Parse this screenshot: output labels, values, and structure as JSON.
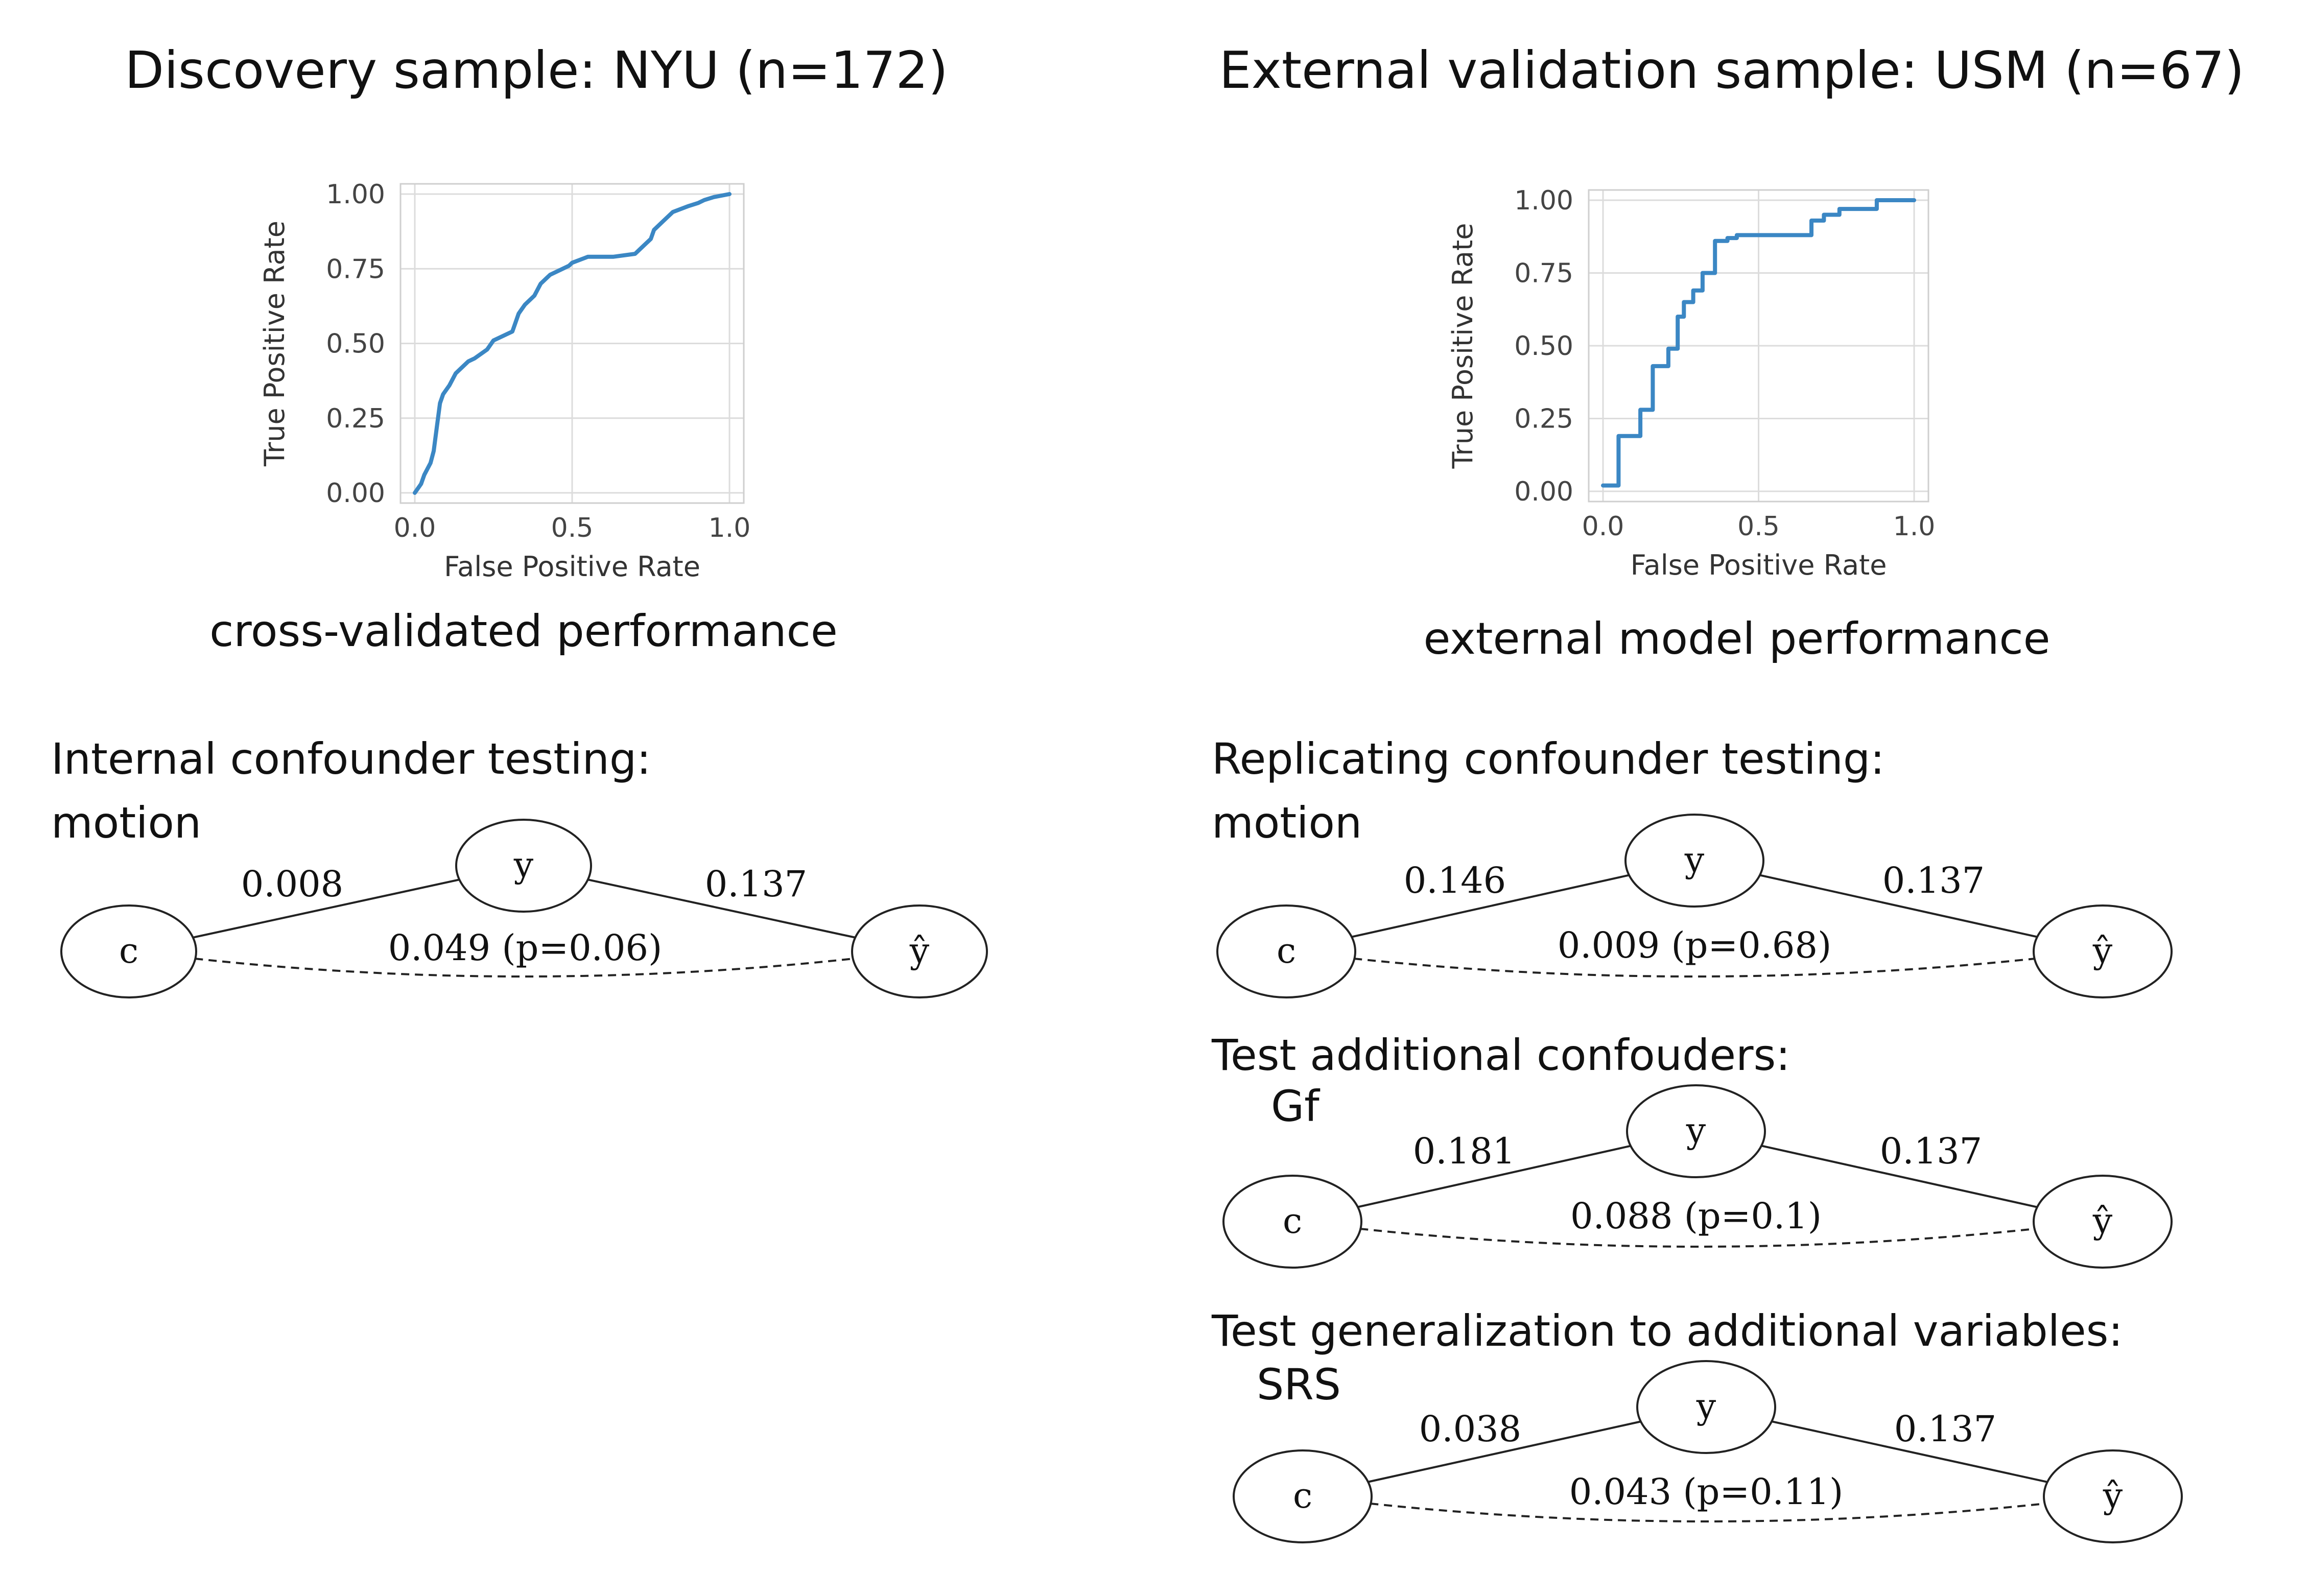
{
  "panels": {
    "left": {
      "title": "Discovery sample: NYU (n=172)",
      "caption": "cross-validated performance",
      "section_label": "Internal confounder testing:"
    },
    "right": {
      "title": "External validation sample: USM (n=67)",
      "caption": "external model performance",
      "section_label": "Replicating confounder testing:"
    }
  },
  "chart_data": [
    {
      "type": "line",
      "name": "cross-validated performance",
      "xlabel": "False Positive Rate",
      "ylabel": "True Positive Rate",
      "xlim": [
        0,
        1
      ],
      "ylim": [
        0,
        1
      ],
      "xticks": [
        "0.0",
        "0.5",
        "1.0"
      ],
      "yticks": [
        "0.00",
        "0.25",
        "0.50",
        "0.75",
        "1.00"
      ],
      "grid": true,
      "color": "#3b87c4",
      "series": [
        {
          "x": [
            0.0,
            0.02,
            0.03,
            0.05,
            0.06,
            0.07,
            0.08,
            0.09,
            0.11,
            0.13,
            0.15,
            0.17,
            0.19,
            0.23,
            0.25,
            0.31,
            0.33,
            0.35,
            0.38,
            0.4,
            0.42,
            0.43,
            0.45,
            0.49,
            0.5,
            0.55,
            0.63,
            0.7,
            0.72,
            0.75,
            0.76,
            0.79,
            0.82,
            0.87,
            0.9,
            0.92,
            0.95,
            1.0
          ],
          "y": [
            0.0,
            0.03,
            0.06,
            0.1,
            0.14,
            0.22,
            0.3,
            0.33,
            0.36,
            0.4,
            0.42,
            0.44,
            0.45,
            0.48,
            0.51,
            0.54,
            0.6,
            0.63,
            0.66,
            0.7,
            0.72,
            0.73,
            0.74,
            0.76,
            0.77,
            0.79,
            0.79,
            0.8,
            0.82,
            0.85,
            0.88,
            0.91,
            0.94,
            0.96,
            0.97,
            0.98,
            0.99,
            1.0
          ]
        }
      ]
    },
    {
      "type": "line",
      "name": "external model performance",
      "xlabel": "False Positive Rate",
      "ylabel": "True Positive Rate",
      "xlim": [
        0,
        1
      ],
      "ylim": [
        0,
        1
      ],
      "xticks": [
        "0.0",
        "0.5",
        "1.0"
      ],
      "yticks": [
        "0.00",
        "0.25",
        "0.50",
        "0.75",
        "1.00"
      ],
      "grid": true,
      "color": "#3b87c4",
      "series": [
        {
          "x": [
            0.0,
            0.05,
            0.05,
            0.12,
            0.12,
            0.16,
            0.16,
            0.21,
            0.21,
            0.24,
            0.24,
            0.26,
            0.26,
            0.29,
            0.29,
            0.32,
            0.32,
            0.36,
            0.36,
            0.4,
            0.4,
            0.43,
            0.43,
            0.5,
            0.5,
            0.67,
            0.67,
            0.71,
            0.71,
            0.76,
            0.76,
            0.88,
            0.88,
            1.0
          ],
          "y": [
            0.02,
            0.02,
            0.19,
            0.19,
            0.28,
            0.28,
            0.43,
            0.43,
            0.49,
            0.49,
            0.6,
            0.6,
            0.65,
            0.65,
            0.69,
            0.69,
            0.75,
            0.75,
            0.86,
            0.86,
            0.87,
            0.87,
            0.88,
            0.88,
            0.88,
            0.88,
            0.93,
            0.93,
            0.95,
            0.95,
            0.97,
            0.97,
            1.0,
            1.0
          ]
        }
      ]
    }
  ],
  "diagrams": [
    {
      "heading": "motion",
      "nodes": {
        "c": "c",
        "y": "y",
        "yhat": "ŷ"
      },
      "edge_cy": "0.008",
      "edge_yyhat": "0.137",
      "edge_cyhat": "0.049 (p=0.06)"
    },
    {
      "heading": "motion",
      "nodes": {
        "c": "c",
        "y": "y",
        "yhat": "ŷ"
      },
      "edge_cy": "0.146",
      "edge_yyhat": "0.137",
      "edge_cyhat": "0.009 (p=0.68)"
    },
    {
      "section_label": "Test additional confouders:",
      "heading": "Gf",
      "nodes": {
        "c": "c",
        "y": "y",
        "yhat": "ŷ"
      },
      "edge_cy": "0.181",
      "edge_yyhat": "0.137",
      "edge_cyhat": "0.088 (p=0.1)"
    },
    {
      "section_label": "Test generalization to additional variables:",
      "heading": "SRS",
      "nodes": {
        "c": "c",
        "y": "y",
        "yhat": "ŷ"
      },
      "edge_cy": "0.038",
      "edge_yyhat": "0.137",
      "edge_cyhat": "0.043 (p=0.11)"
    }
  ]
}
